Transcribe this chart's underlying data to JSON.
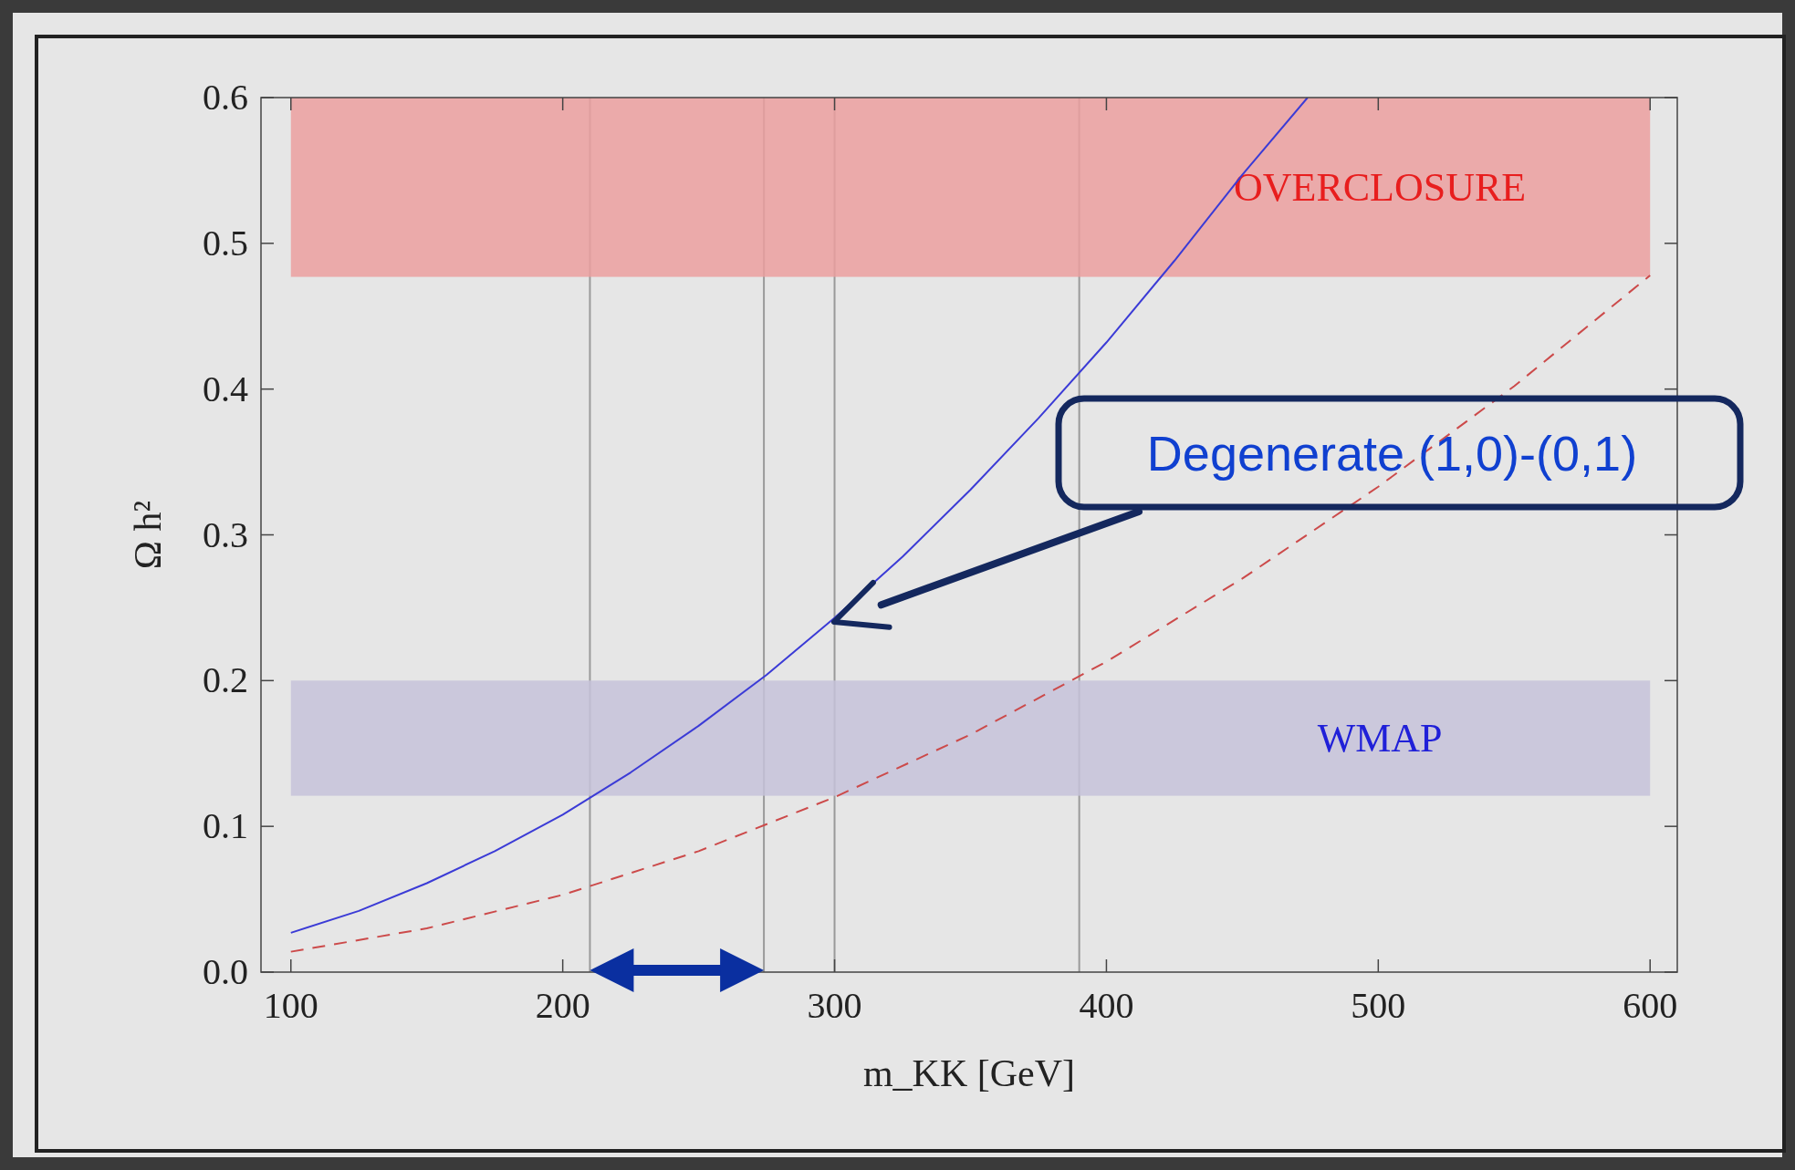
{
  "chart_data": {
    "type": "line",
    "xlabel": "m_KK [GeV]",
    "ylabel": "Ω h²",
    "xlim": [
      89,
      610
    ],
    "ylim": [
      0,
      0.6
    ],
    "xticks": [
      100,
      200,
      300,
      400,
      500,
      600
    ],
    "yticks": [
      {
        "value": 0,
        "label": "0.0"
      },
      0.1,
      0.2,
      0.3,
      0.4,
      0.5,
      0.6
    ],
    "series": [
      {
        "color": "#3b3bd6",
        "line_style": "solid",
        "x": [
          100,
          125,
          150,
          175,
          200,
          225,
          250,
          275,
          300,
          325,
          350,
          375,
          400,
          425,
          450,
          474
        ],
        "values": [
          0.027,
          0.042,
          0.061,
          0.083,
          0.108,
          0.137,
          0.169,
          0.204,
          0.243,
          0.285,
          0.331,
          0.38,
          0.432,
          0.488,
          0.547,
          0.6
        ]
      },
      {
        "color": "#cc4a4a",
        "line_style": "dashed",
        "x": [
          100,
          150,
          200,
          250,
          300,
          350,
          400,
          450,
          500,
          550,
          600
        ],
        "values": [
          0.014,
          0.03,
          0.053,
          0.083,
          0.12,
          0.163,
          0.213,
          0.27,
          0.333,
          0.402,
          0.478
        ]
      }
    ],
    "bands": [
      {
        "axis": "y",
        "from": 0.477,
        "to": 0.6,
        "label": "OVERCLOSURE",
        "color": "#eb9f9f"
      },
      {
        "axis": "y",
        "from": 0.121,
        "to": 0.2,
        "label": "WMAP",
        "color": "#c5c2d9"
      }
    ],
    "ref_lines": [
      {
        "axis": "x",
        "value": 210
      },
      {
        "axis": "x",
        "value": 274
      },
      {
        "axis": "x",
        "value": 300
      },
      {
        "axis": "x",
        "value": 390
      }
    ],
    "annotations": [
      "Degenerate (1,0)-(0,1)"
    ]
  }
}
